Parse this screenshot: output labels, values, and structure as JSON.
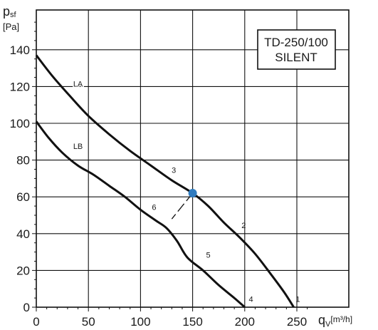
{
  "chart_data": {
    "type": "line",
    "title_lines": [
      "TD-250/100",
      "SILENT"
    ],
    "ylabel_symbol": "p",
    "ylabel_sub": "sf",
    "ylabel_unit": "[Pa]",
    "xlabel_symbol": "q",
    "xlabel_sub": "V",
    "xlabel_unit": "[m³/h]",
    "xlim": [
      0,
      265
    ],
    "ylim": [
      0,
      155
    ],
    "xticks": [
      0,
      50,
      100,
      150,
      200,
      250
    ],
    "yticks": [
      0,
      20,
      40,
      60,
      80,
      100,
      120,
      140
    ],
    "grid": true,
    "series": [
      {
        "name": "LA",
        "points": [
          [
            0,
            137
          ],
          [
            15,
            126
          ],
          [
            32,
            115
          ],
          [
            50,
            104
          ],
          [
            70,
            94
          ],
          [
            90,
            85
          ],
          [
            110,
            77
          ],
          [
            130,
            69
          ],
          [
            150,
            62
          ],
          [
            165,
            55
          ],
          [
            180,
            46
          ],
          [
            195,
            38
          ],
          [
            210,
            29
          ],
          [
            225,
            18
          ],
          [
            238,
            8
          ],
          [
            247,
            0
          ]
        ]
      },
      {
        "name": "LB",
        "points": [
          [
            0,
            101
          ],
          [
            12,
            92
          ],
          [
            25,
            84
          ],
          [
            40,
            77
          ],
          [
            55,
            72
          ],
          [
            70,
            66
          ],
          [
            85,
            60
          ],
          [
            100,
            53
          ],
          [
            115,
            47
          ],
          [
            125,
            43
          ],
          [
            135,
            36
          ],
          [
            145,
            27
          ],
          [
            160,
            20
          ],
          [
            175,
            12
          ],
          [
            190,
            5
          ],
          [
            200,
            0
          ]
        ]
      }
    ],
    "operating_point": {
      "x": 150,
      "y": 62,
      "color": "#2f7bbf"
    },
    "dash_to": {
      "x": 130,
      "y": 48
    },
    "annotations": [
      {
        "text": "LA",
        "x": 40,
        "y": 120
      },
      {
        "text": "LB",
        "x": 40,
        "y": 86
      },
      {
        "text": "3",
        "x": 132,
        "y": 73
      },
      {
        "text": "2",
        "x": 199,
        "y": 43
      },
      {
        "text": "6",
        "x": 113,
        "y": 53
      },
      {
        "text": "5",
        "x": 165,
        "y": 27
      },
      {
        "text": "4",
        "x": 206,
        "y": 3
      },
      {
        "text": "1",
        "x": 251,
        "y": 3
      }
    ]
  }
}
